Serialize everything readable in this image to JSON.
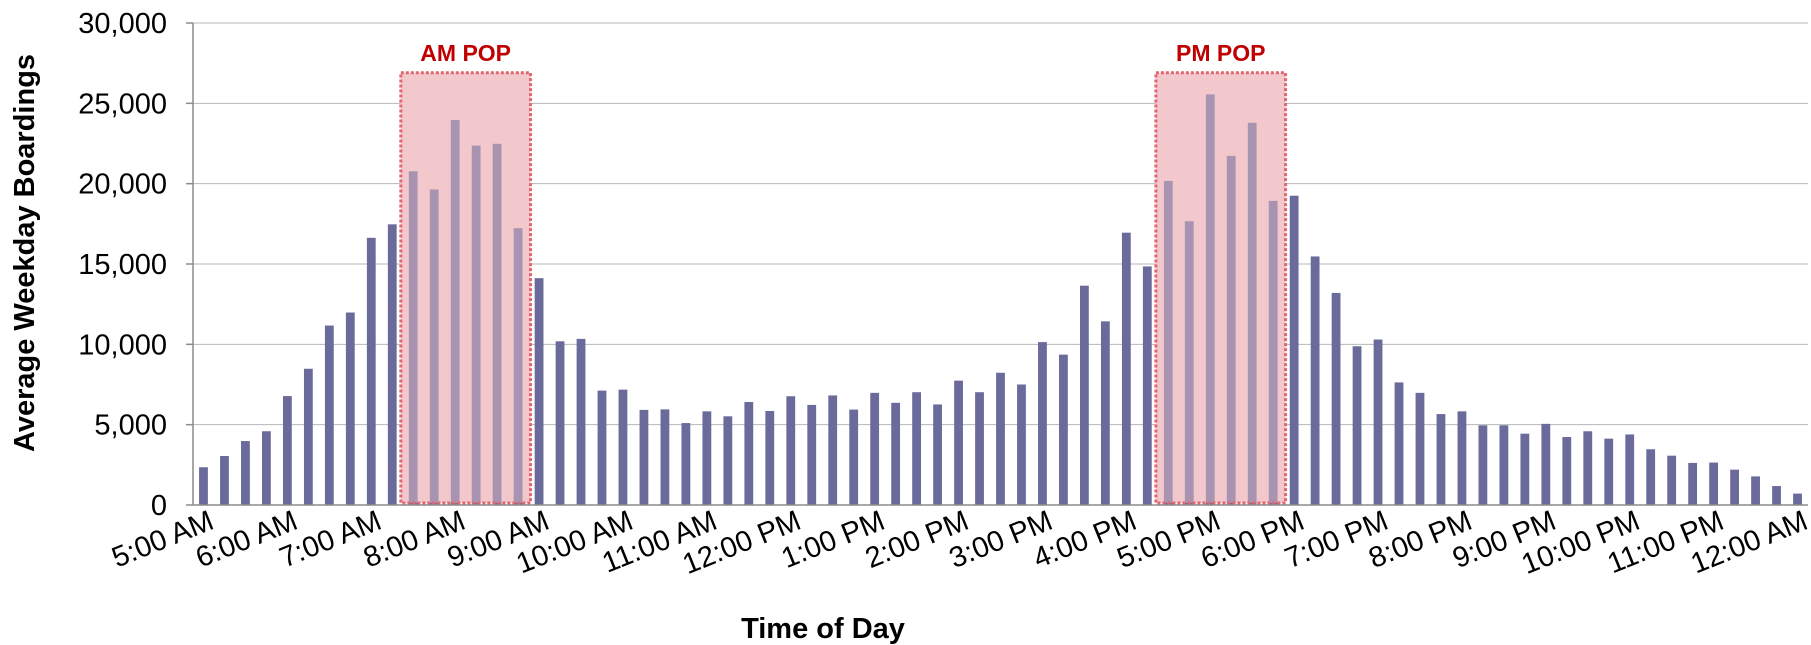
{
  "chart_data": {
    "type": "bar",
    "ylabel": "Average Weekday Boardings",
    "xlabel": "Time of Day",
    "ylim": [
      0,
      30000
    ],
    "yticks": [
      "0",
      "5,000",
      "10,000",
      "15,000",
      "20,000",
      "25,000",
      "30,000"
    ],
    "x_tick_labels": [
      "5:00 AM",
      "6:00 AM",
      "7:00 AM",
      "8:00 AM",
      "9:00 AM",
      "10:00 AM",
      "11:00 AM",
      "12:00 PM",
      "1:00 PM",
      "2:00 PM",
      "3:00 PM",
      "4:00 PM",
      "5:00 PM",
      "6:00 PM",
      "7:00 PM",
      "8:00 PM",
      "9:00 PM",
      "10:00 PM",
      "11:00 PM",
      "12:00 AM"
    ],
    "interval": "15 minutes",
    "values": [
      2350,
      3050,
      3980,
      4590,
      6780,
      8480,
      11170,
      11980,
      16630,
      17470,
      20770,
      19640,
      23960,
      22370,
      22480,
      17230,
      14120,
      10190,
      10340,
      7120,
      7180,
      5920,
      5950,
      5100,
      5830,
      5520,
      6410,
      5850,
      6770,
      6230,
      6820,
      5940,
      6980,
      6360,
      7020,
      6260,
      7740,
      7020,
      8230,
      7500,
      10140,
      9360,
      13650,
      11430,
      16950,
      14850,
      20170,
      17660,
      25560,
      21730,
      23790,
      18930,
      19250,
      15470,
      13200,
      9880,
      10300,
      7630,
      6980,
      5660,
      5830,
      4960,
      4960,
      4440,
      5050,
      4230,
      4590,
      4130,
      4390,
      3470,
      3070,
      2620,
      2640,
      2200,
      1780,
      1180,
      710
    ],
    "highlight_regions": [
      {
        "label": "AM POP",
        "start_index": 10,
        "end_index": 15
      },
      {
        "label": "PM POP",
        "start_index": 46,
        "end_index": 51
      }
    ],
    "grid": "horizontal",
    "bar_color": "#6b6b9b",
    "highlight_color": "#c00000"
  }
}
